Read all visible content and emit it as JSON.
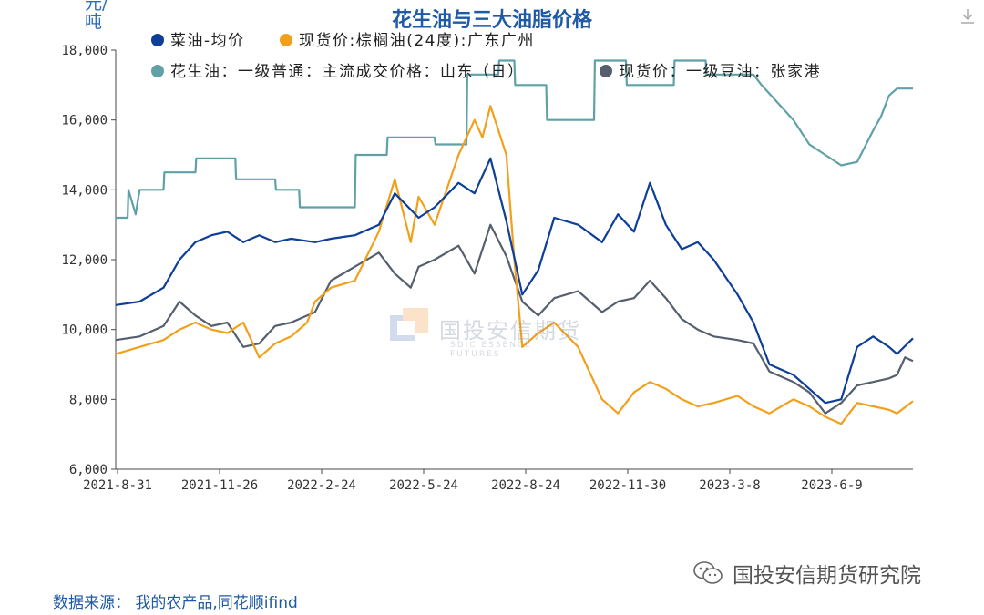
{
  "title": "花生油与三大油脂价格",
  "unit": "元/吨",
  "source": "数据来源： 我的农产品,同花顺ifind",
  "brand": "国投安信期货研究院",
  "watermark": {
    "text": "国投安信期货",
    "sub": "SDIC ESSENCE FUTURES"
  },
  "chart_data": {
    "type": "line",
    "x_tick_labels": [
      "2021-8-31",
      "2021-11-26",
      "2022-2-24",
      "2022-5-24",
      "2022-8-24",
      "2022-11-30",
      "2023-3-8",
      "2023-6-9"
    ],
    "y_ticks": [
      "6,000",
      "8,000",
      "10,000",
      "12,000",
      "14,000",
      "16,000",
      "18,000"
    ],
    "ylim": [
      6000,
      18000
    ],
    "grid": false,
    "legend_position": "top-left",
    "series": [
      {
        "name": "菜油-均价",
        "color": "#0d3f99",
        "x": [
          0,
          3,
          6,
          8,
          10,
          12,
          14,
          16,
          18,
          20,
          22,
          25,
          27,
          30,
          33,
          35,
          38,
          40,
          43,
          45,
          47,
          49,
          51,
          53,
          55,
          58,
          61,
          63,
          65,
          67,
          69,
          71,
          73,
          75,
          78,
          80,
          82,
          85,
          87,
          89,
          91,
          93,
          95,
          97,
          98,
          100
        ],
        "y": [
          10700,
          10800,
          11200,
          12000,
          12500,
          12700,
          12800,
          12500,
          12700,
          12500,
          12600,
          12500,
          12600,
          12700,
          13000,
          13900,
          13200,
          13500,
          14200,
          13900,
          14900,
          13100,
          11000,
          11700,
          13200,
          13000,
          12500,
          13300,
          12800,
          14200,
          13000,
          12300,
          12500,
          12000,
          11000,
          10200,
          9000,
          8700,
          8300,
          7900,
          8000,
          9500,
          9800,
          9500,
          9300,
          9750
        ]
      },
      {
        "name": "现货价:棕榈油(24度):广东广州",
        "color": "#f2a01c",
        "x": [
          0,
          3,
          6,
          8,
          10,
          12,
          14,
          16,
          18,
          20,
          22,
          24,
          25,
          27,
          30,
          33,
          35,
          37,
          38,
          40,
          43,
          45,
          46,
          47,
          49,
          50,
          51,
          53,
          55,
          58,
          61,
          63,
          65,
          67,
          69,
          71,
          73,
          75,
          78,
          80,
          82,
          85,
          87,
          89,
          91,
          93,
          95,
          97,
          98,
          100
        ],
        "y": [
          9300,
          9500,
          9700,
          10000,
          10200,
          10000,
          9900,
          10200,
          9200,
          9600,
          9800,
          10200,
          10800,
          11200,
          11400,
          12800,
          14300,
          12500,
          13800,
          13000,
          15000,
          16000,
          15500,
          16400,
          15000,
          12000,
          9500,
          9900,
          10200,
          9500,
          8000,
          7600,
          8200,
          8500,
          8300,
          8000,
          7800,
          7900,
          8100,
          7800,
          7600,
          8000,
          7800,
          7500,
          7300,
          7900,
          7800,
          7700,
          7600,
          7950
        ]
      },
      {
        "name": "花生油：一级普通：主流成交价格：山东（日）",
        "color": "#5fa1a7",
        "x": [
          0,
          1.5,
          1.6,
          2.5,
          3,
          6,
          6.1,
          10,
          10.1,
          15,
          15.1,
          20,
          20.1,
          23,
          23.1,
          26,
          26.1,
          30,
          30.1,
          34,
          34.1,
          40,
          40.1,
          44,
          44.1,
          48,
          48.1,
          50,
          50.1,
          54,
          54.1,
          60,
          60.1,
          64,
          64.1,
          70,
          70.1,
          74,
          74.1,
          80,
          81,
          83,
          85,
          87,
          89,
          91,
          93,
          95,
          96,
          97,
          98,
          100
        ],
        "y": [
          13200,
          13200,
          14000,
          13300,
          14000,
          14000,
          14500,
          14500,
          14900,
          14900,
          14300,
          14300,
          14000,
          14000,
          13500,
          13500,
          13500,
          13500,
          15000,
          15000,
          15500,
          15500,
          15300,
          15300,
          17300,
          17300,
          17700,
          17700,
          17000,
          17000,
          16000,
          16000,
          17700,
          17700,
          17000,
          17000,
          17700,
          17700,
          17300,
          17300,
          17000,
          16500,
          16000,
          15300,
          15000,
          14700,
          14800,
          15700,
          16100,
          16700,
          16900,
          16900
        ]
      },
      {
        "name": "现货价：一级豆油：张家港",
        "color": "#555f6e",
        "x": [
          0,
          3,
          6,
          8,
          10,
          12,
          14,
          16,
          18,
          20,
          22,
          25,
          27,
          30,
          33,
          35,
          37,
          38,
          40,
          43,
          45,
          47,
          49,
          51,
          53,
          55,
          58,
          61,
          63,
          65,
          67,
          69,
          71,
          73,
          75,
          78,
          80,
          82,
          85,
          87,
          89,
          91,
          93,
          95,
          97,
          98,
          99,
          100
        ],
        "y": [
          9700,
          9800,
          10100,
          10800,
          10400,
          10100,
          10200,
          9500,
          9600,
          10100,
          10200,
          10500,
          11400,
          11800,
          12200,
          11600,
          11200,
          11800,
          12000,
          12400,
          11600,
          13000,
          12100,
          10800,
          10400,
          10900,
          11100,
          10500,
          10800,
          10900,
          11400,
          10900,
          10300,
          10000,
          9800,
          9700,
          9600,
          8800,
          8500,
          8200,
          7600,
          7900,
          8400,
          8500,
          8600,
          8700,
          9200,
          9100
        ]
      }
    ]
  }
}
